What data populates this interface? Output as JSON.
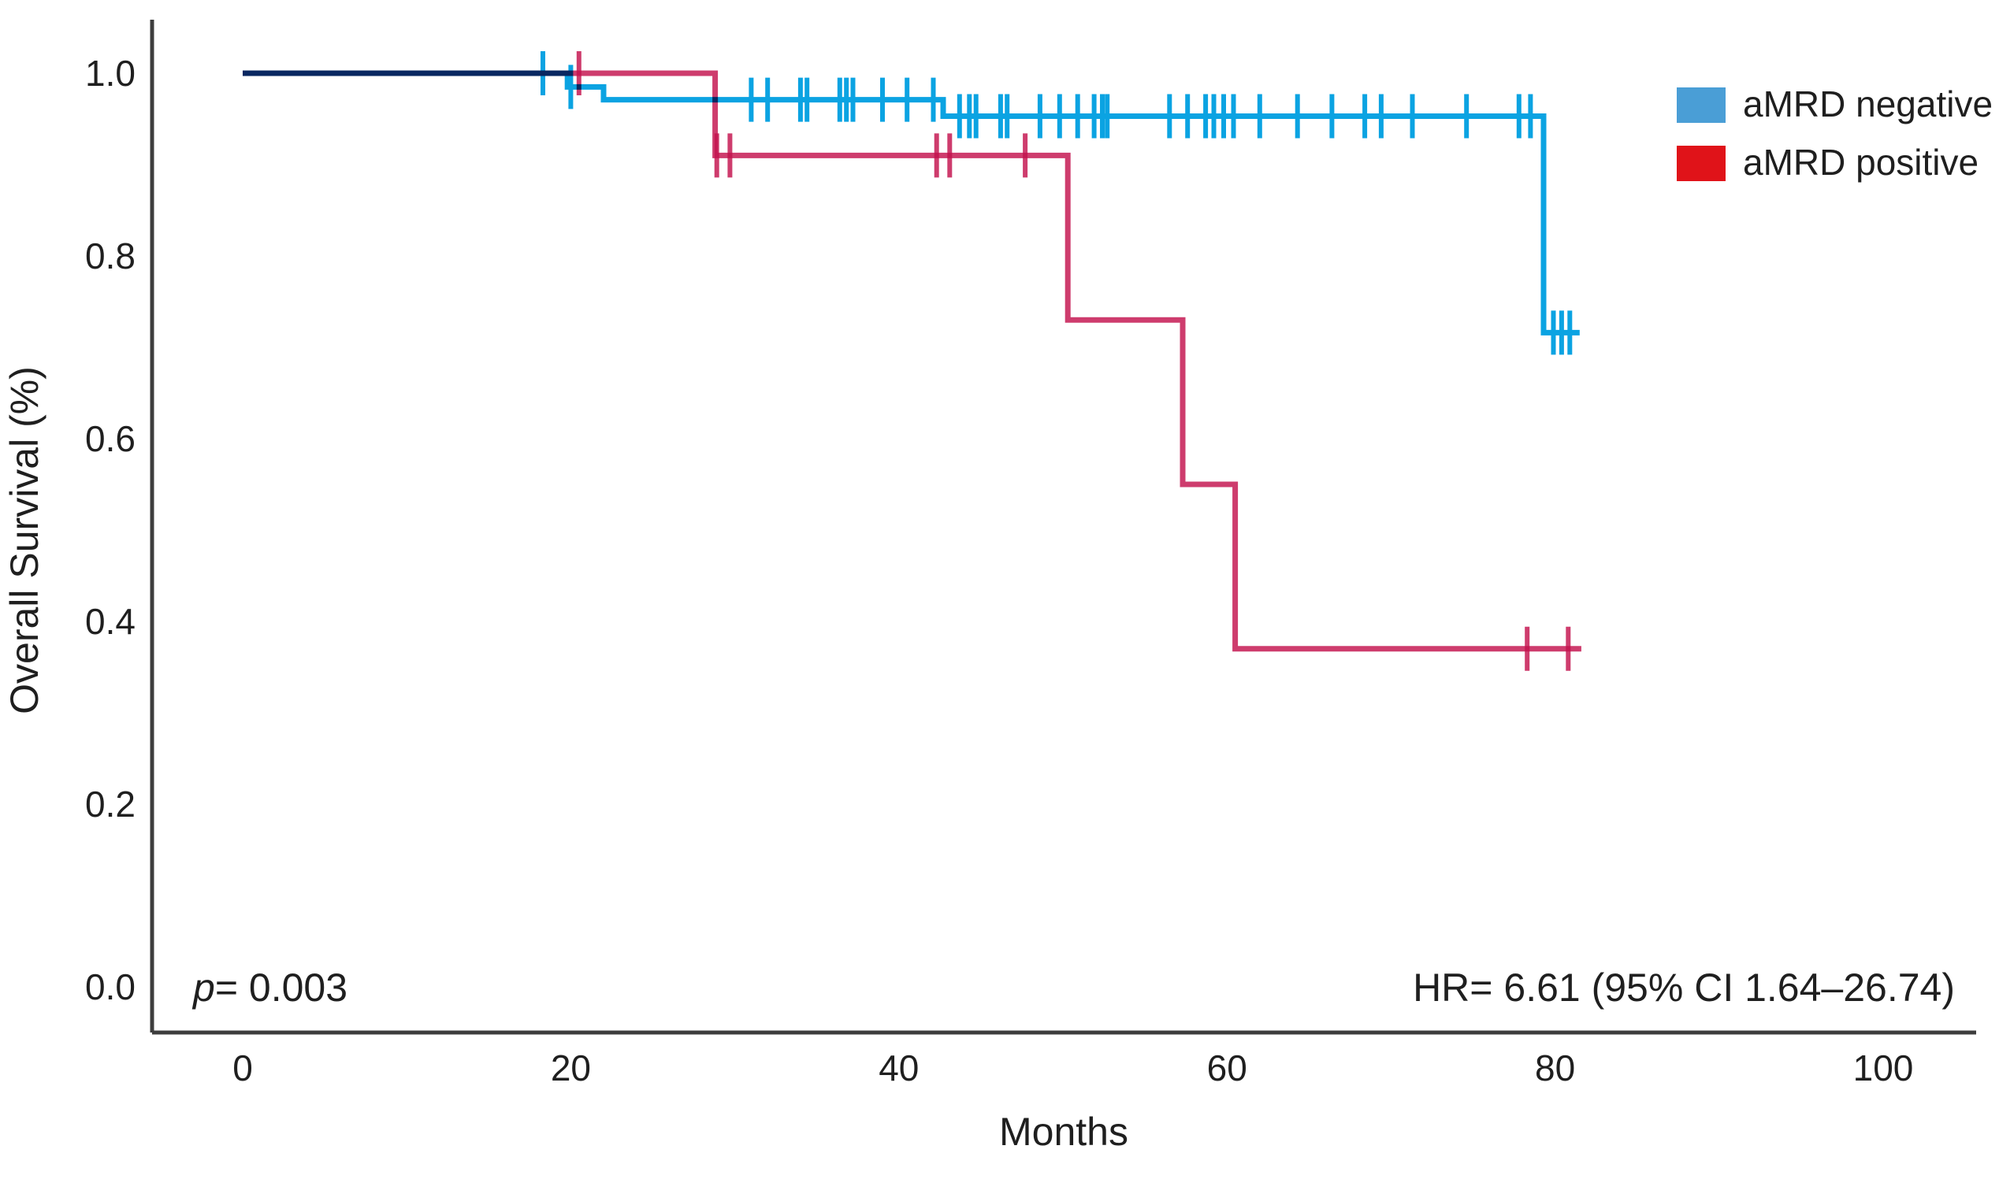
{
  "figure": {
    "y_axis_title": "Overall Survival (%)",
    "x_axis_title": "Months",
    "p_label": "p",
    "p_value": "= 0.003",
    "hr_text": "HR= 6.61 (95% CI 1.64–26.74)"
  },
  "legend": {
    "position": "top-right",
    "items": [
      {
        "label": "aMRD negative",
        "swatch_color": "#4a9ed6"
      },
      {
        "label": "aMRD positive",
        "swatch_color": "#e01319"
      }
    ]
  },
  "chart_data": {
    "type": "line",
    "subtype": "kaplan-meier-step",
    "title": "",
    "xlabel": "Months",
    "ylabel": "Overall Survival (%)",
    "xlim": [
      0,
      100
    ],
    "ylim": [
      0.0,
      1.0
    ],
    "grid": false,
    "legend_position": "top-right",
    "x_ticks": [
      {
        "value": 0,
        "label": "0"
      },
      {
        "value": 20,
        "label": "20"
      },
      {
        "value": 40,
        "label": "40"
      },
      {
        "value": 60,
        "label": "60"
      },
      {
        "value": 80,
        "label": "80"
      },
      {
        "value": 100,
        "label": "100"
      }
    ],
    "y_ticks": [
      {
        "value": 1.0,
        "label": "1.0"
      },
      {
        "value": 0.8,
        "label": "0.8"
      },
      {
        "value": 0.6,
        "label": "0.6"
      },
      {
        "value": 0.4,
        "label": "0.4"
      },
      {
        "value": 0.2,
        "label": "0.2"
      },
      {
        "value": 0.0,
        "label": "0.0"
      }
    ],
    "annotations": [
      {
        "text": "p= 0.003",
        "position": "bottom-left"
      },
      {
        "text": "HR= 6.61 (95% CI 1.64–26.74)",
        "position": "bottom-right"
      }
    ],
    "series": [
      {
        "name": "aMRD negative",
        "color": "#0ba3e2",
        "opacity": 1.0,
        "points": [
          [
            0,
            1.0
          ],
          [
            19.8,
            1.0
          ],
          [
            19.8,
            0.985
          ],
          [
            22.0,
            0.985
          ],
          [
            22.0,
            0.971
          ],
          [
            42.7,
            0.971
          ],
          [
            42.7,
            0.953
          ],
          [
            79.3,
            0.953
          ],
          [
            79.3,
            0.716
          ],
          [
            81.5,
            0.716
          ]
        ],
        "censor_marks": [
          [
            18.3,
            1.0
          ],
          [
            20.0,
            0.985
          ],
          [
            31.0,
            0.971
          ],
          [
            32.0,
            0.971
          ],
          [
            34.0,
            0.971
          ],
          [
            34.4,
            0.971
          ],
          [
            36.4,
            0.971
          ],
          [
            36.8,
            0.971
          ],
          [
            37.2,
            0.971
          ],
          [
            39.0,
            0.971
          ],
          [
            40.5,
            0.971
          ],
          [
            42.1,
            0.971
          ],
          [
            43.7,
            0.953
          ],
          [
            44.3,
            0.953
          ],
          [
            44.7,
            0.953
          ],
          [
            46.2,
            0.953
          ],
          [
            46.6,
            0.953
          ],
          [
            48.6,
            0.953
          ],
          [
            49.8,
            0.953
          ],
          [
            50.9,
            0.953
          ],
          [
            51.9,
            0.953
          ],
          [
            52.4,
            0.953
          ],
          [
            52.7,
            0.953
          ],
          [
            56.5,
            0.953
          ],
          [
            57.6,
            0.953
          ],
          [
            58.7,
            0.953
          ],
          [
            59.2,
            0.953
          ],
          [
            59.8,
            0.953
          ],
          [
            60.4,
            0.953
          ],
          [
            62.0,
            0.953
          ],
          [
            64.3,
            0.953
          ],
          [
            66.4,
            0.953
          ],
          [
            68.4,
            0.953
          ],
          [
            69.4,
            0.953
          ],
          [
            71.3,
            0.953
          ],
          [
            74.6,
            0.953
          ],
          [
            77.8,
            0.953
          ],
          [
            78.5,
            0.953
          ],
          [
            79.9,
            0.716
          ],
          [
            80.4,
            0.716
          ],
          [
            80.9,
            0.716
          ]
        ]
      },
      {
        "name": "aMRD positive",
        "color": "#c3114d",
        "opacity": 0.82,
        "points": [
          [
            0,
            1.0
          ],
          [
            28.8,
            1.0
          ],
          [
            28.8,
            0.91
          ],
          [
            50.3,
            0.91
          ],
          [
            50.3,
            0.73
          ],
          [
            57.3,
            0.73
          ],
          [
            57.3,
            0.55
          ],
          [
            60.5,
            0.55
          ],
          [
            60.5,
            0.37
          ],
          [
            81.6,
            0.37
          ]
        ],
        "censor_marks": [
          [
            20.5,
            1.0
          ],
          [
            28.9,
            0.91
          ],
          [
            29.7,
            0.91
          ],
          [
            42.3,
            0.91
          ],
          [
            43.1,
            0.91
          ],
          [
            47.7,
            0.91
          ],
          [
            78.3,
            0.37
          ],
          [
            80.8,
            0.37
          ]
        ]
      }
    ]
  }
}
